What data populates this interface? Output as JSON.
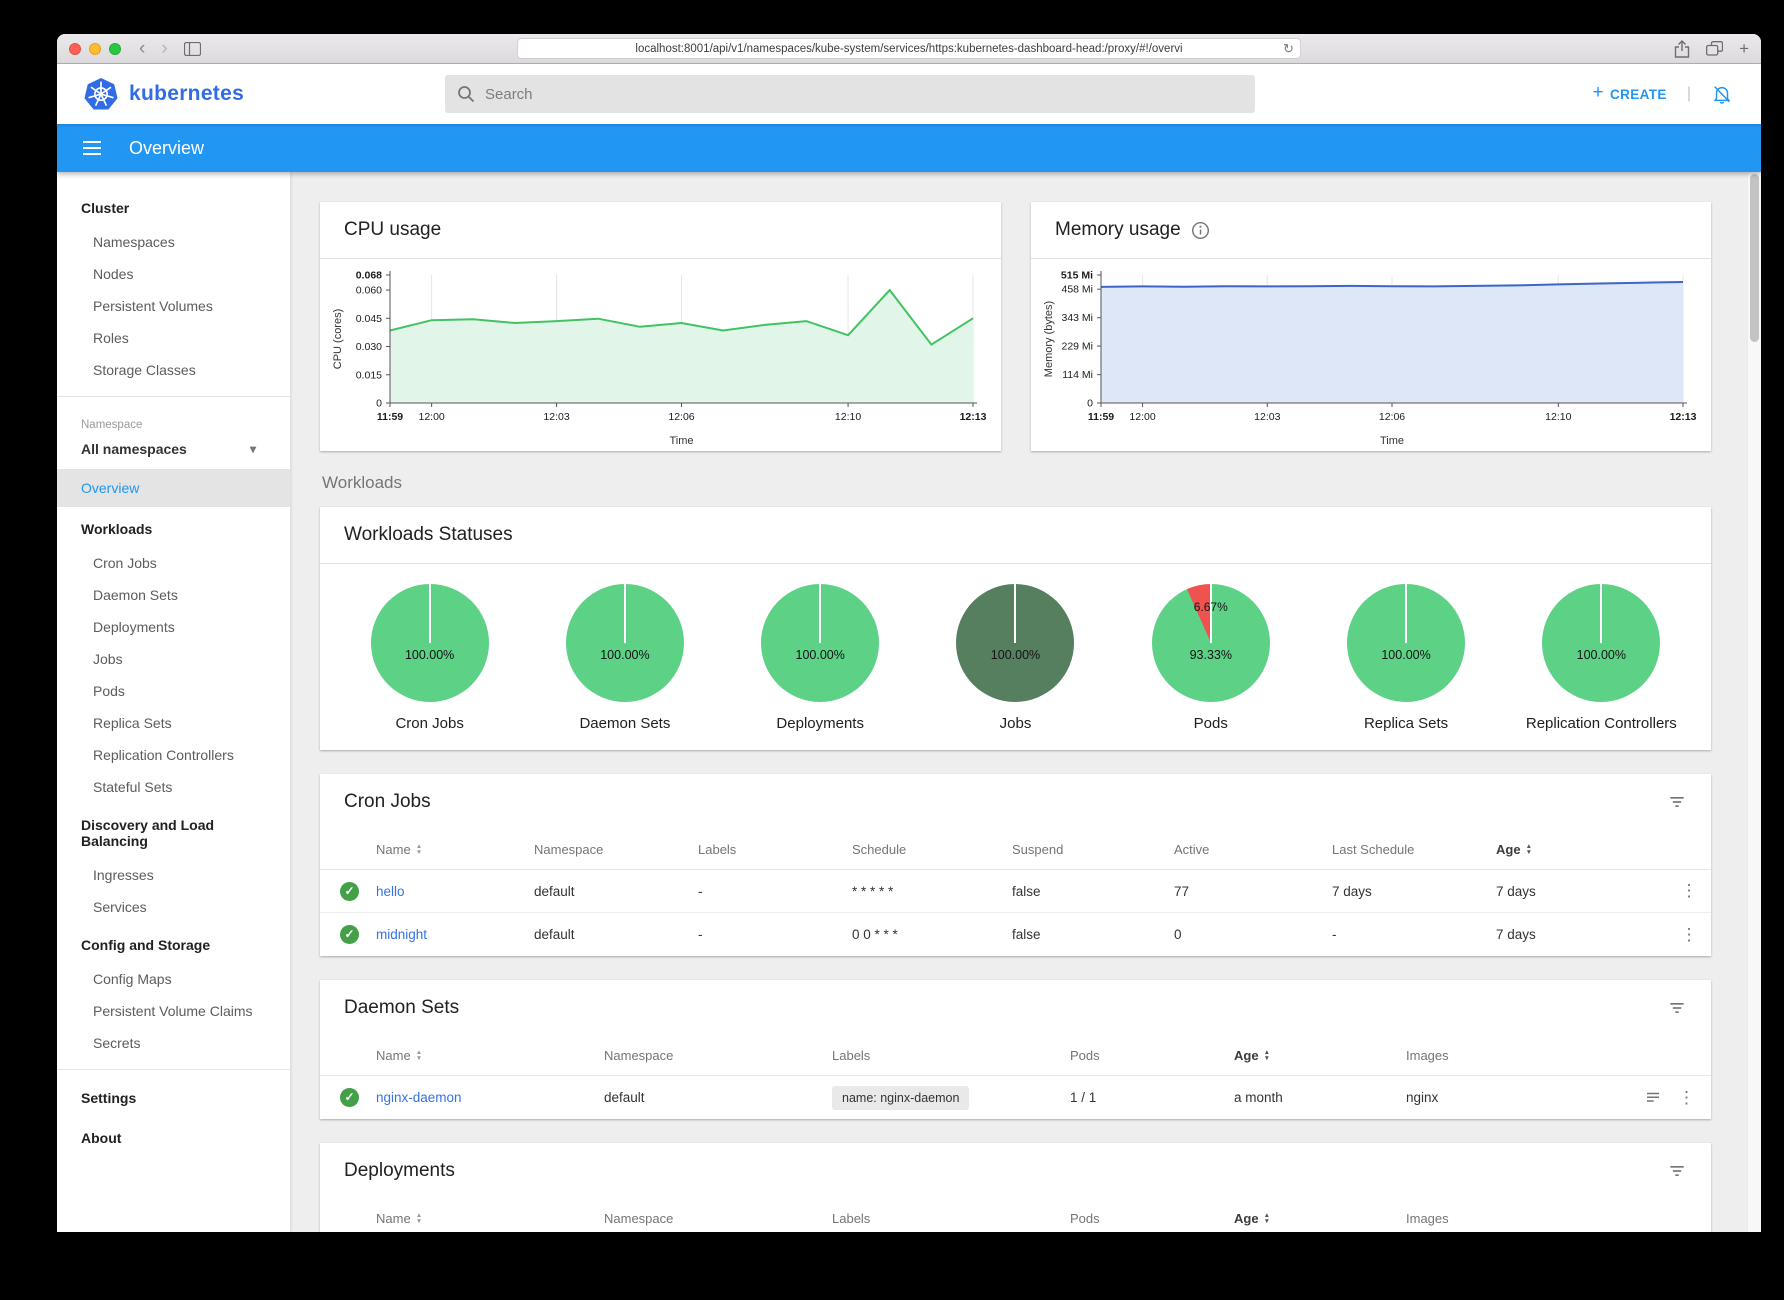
{
  "browser": {
    "url": "localhost:8001/api/v1/namespaces/kube-system/services/https:kubernetes-dashboard-head:/proxy/#!/overvi"
  },
  "header": {
    "brand": "kubernetes",
    "search_placeholder": "Search",
    "create_label": "CREATE"
  },
  "toolbar": {
    "title": "Overview"
  },
  "sidebar": {
    "cluster_header": "Cluster",
    "cluster_items": [
      "Namespaces",
      "Nodes",
      "Persistent Volumes",
      "Roles",
      "Storage Classes"
    ],
    "namespace_label": "Namespace",
    "namespace_selected": "All namespaces",
    "overview": "Overview",
    "workloads_header": "Workloads",
    "workloads_items": [
      "Cron Jobs",
      "Daemon Sets",
      "Deployments",
      "Jobs",
      "Pods",
      "Replica Sets",
      "Replication Controllers",
      "Stateful Sets"
    ],
    "discovery_header": "Discovery and Load Balancing",
    "discovery_items": [
      "Ingresses",
      "Services"
    ],
    "config_header": "Config and Storage",
    "config_items": [
      "Config Maps",
      "Persistent Volume Claims",
      "Secrets"
    ],
    "settings": "Settings",
    "about": "About"
  },
  "main": {
    "workloads_section_label": "Workloads"
  },
  "chart_data": [
    {
      "type": "area",
      "title": "CPU usage",
      "ylabel": "CPU (cores)",
      "xlabel": "Time",
      "ylim": [
        0,
        0.068
      ],
      "xlim": [
        0,
        14
      ],
      "stroke": "#41c363",
      "fill": "#e2f5e9",
      "yticks": [
        {
          "v": 0,
          "label": "0"
        },
        {
          "v": 0.015,
          "label": "0.015"
        },
        {
          "v": 0.03,
          "label": "0.030"
        },
        {
          "v": 0.045,
          "label": "0.045"
        },
        {
          "v": 0.06,
          "label": "0.060"
        },
        {
          "v": 0.068,
          "label": "0.068",
          "bold": true
        }
      ],
      "xticks": [
        {
          "v": 0,
          "label": "11:59",
          "bold": true
        },
        {
          "v": 1,
          "label": "12:00"
        },
        {
          "v": 4,
          "label": "12:03"
        },
        {
          "v": 7,
          "label": "12:06"
        },
        {
          "v": 11,
          "label": "12:10"
        },
        {
          "v": 14,
          "label": "12:13",
          "bold": true
        }
      ],
      "x": [
        0,
        1,
        2,
        3,
        4,
        5,
        6,
        7,
        8,
        9,
        10,
        11,
        12,
        13,
        14
      ],
      "values": [
        0.0385,
        0.044,
        0.0445,
        0.0425,
        0.0435,
        0.0448,
        0.0405,
        0.0425,
        0.0385,
        0.0415,
        0.0435,
        0.036,
        0.06,
        0.031,
        0.045
      ]
    },
    {
      "type": "area",
      "title": "Memory usage",
      "ylabel": "Memory (bytes)",
      "xlabel": "Time",
      "ylim": [
        0,
        515
      ],
      "xlim": [
        0,
        14
      ],
      "stroke": "#3b65c8",
      "fill": "#dde7f8",
      "yticks": [
        {
          "v": 0,
          "label": "0"
        },
        {
          "v": 114,
          "label": "114 Mi"
        },
        {
          "v": 229,
          "label": "229 Mi"
        },
        {
          "v": 343,
          "label": "343 Mi"
        },
        {
          "v": 458,
          "label": "458 Mi"
        },
        {
          "v": 515,
          "label": "515 Mi",
          "bold": true
        }
      ],
      "xticks": [
        {
          "v": 0,
          "label": "11:59",
          "bold": true
        },
        {
          "v": 1,
          "label": "12:00"
        },
        {
          "v": 4,
          "label": "12:03"
        },
        {
          "v": 7,
          "label": "12:06"
        },
        {
          "v": 11,
          "label": "12:10"
        },
        {
          "v": 14,
          "label": "12:13",
          "bold": true
        }
      ],
      "x": [
        0,
        1,
        2,
        3,
        4,
        5,
        6,
        7,
        8,
        9,
        10,
        11,
        12,
        13,
        14
      ],
      "values": [
        467,
        469,
        468,
        470,
        469,
        470,
        471,
        470,
        469,
        471,
        473,
        477,
        481,
        484,
        487
      ]
    },
    {
      "type": "pie",
      "title": "Workloads Statuses",
      "pies": [
        {
          "label": "Cron Jobs",
          "segments": [
            {
              "value": 100,
              "color": "#5dd185",
              "label": "100.00%"
            }
          ]
        },
        {
          "label": "Daemon Sets",
          "segments": [
            {
              "value": 100,
              "color": "#5dd185",
              "label": "100.00%"
            }
          ]
        },
        {
          "label": "Deployments",
          "segments": [
            {
              "value": 100,
              "color": "#5dd185",
              "label": "100.00%"
            }
          ]
        },
        {
          "label": "Jobs",
          "segments": [
            {
              "value": 100,
              "color": "#567f60",
              "label": "100.00%"
            }
          ]
        },
        {
          "label": "Pods",
          "segments": [
            {
              "value": 93.33,
              "color": "#5dd185",
              "label": "93.33%"
            },
            {
              "value": 6.67,
              "color": "#ef5350",
              "label": "6.67%"
            }
          ]
        },
        {
          "label": "Replica Sets",
          "segments": [
            {
              "value": 100,
              "color": "#5dd185",
              "label": "100.00%"
            }
          ]
        },
        {
          "label": "Replication Controllers",
          "segments": [
            {
              "value": 100,
              "color": "#5dd185",
              "label": "100.00%"
            }
          ]
        }
      ]
    }
  ],
  "cron_jobs": {
    "title": "Cron Jobs",
    "headers": {
      "name": "Name",
      "namespace": "Namespace",
      "labels": "Labels",
      "schedule": "Schedule",
      "suspend": "Suspend",
      "active": "Active",
      "last_schedule": "Last Schedule",
      "age": "Age"
    },
    "rows": [
      {
        "name": "hello",
        "namespace": "default",
        "labels": "-",
        "schedule": "* * * * *",
        "suspend": "false",
        "active": "77",
        "last_schedule": "7 days",
        "age": "7 days"
      },
      {
        "name": "midnight",
        "namespace": "default",
        "labels": "-",
        "schedule": "0 0 * * *",
        "suspend": "false",
        "active": "0",
        "last_schedule": "-",
        "age": "7 days"
      }
    ]
  },
  "daemon_sets": {
    "title": "Daemon Sets",
    "headers": {
      "name": "Name",
      "namespace": "Namespace",
      "labels": "Labels",
      "pods": "Pods",
      "age": "Age",
      "images": "Images"
    },
    "rows": [
      {
        "name": "nginx-daemon",
        "namespace": "default",
        "label_chip": "name: nginx-daemon",
        "pods": "1 / 1",
        "age": "a month",
        "images": "nginx"
      }
    ]
  },
  "deployments": {
    "title": "Deployments",
    "headers": {
      "name": "Name",
      "namespace": "Namespace",
      "labels": "Labels",
      "pods": "Pods",
      "age": "Age",
      "images": "Images"
    }
  },
  "colors": {
    "toolbar_blue": "#2196f3",
    "brand_blue": "#326ce5",
    "link_blue": "#3572e3",
    "status_green": "#43a047",
    "pie_green": "#5dd185",
    "pie_dark_green": "#567f60",
    "pie_red": "#ef5350"
  }
}
